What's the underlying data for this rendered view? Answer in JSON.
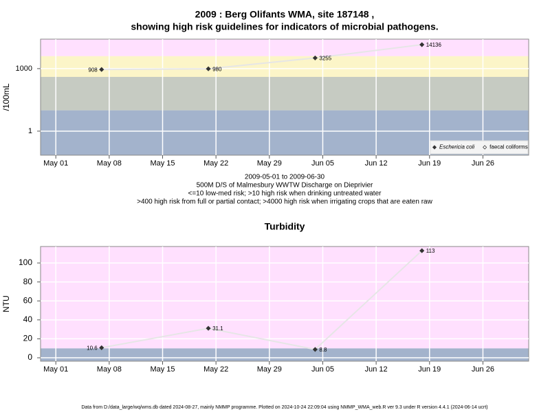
{
  "chart_data": [
    {
      "type": "line",
      "title": [
        "2009 : Berg Olifants WMA, site 187148 ,",
        "showing high risk guidelines for indicators of microbial pathogens."
      ],
      "y_label": "/100mL",
      "log_y": true,
      "x": [
        "May 07",
        "May 21",
        "Jun 04",
        "Jun 18"
      ],
      "series": [
        {
          "name": "Eschericia coli",
          "color": "#333333",
          "line_color": "#e6e6e6",
          "marker": "filled",
          "values": [
            908,
            980,
            3255,
            14136
          ]
        },
        {
          "name": "faecal coliforms",
          "color": "#333333",
          "line_color": "#e6e6e6",
          "marker": "open",
          "values": [
            null,
            null,
            null,
            null
          ]
        }
      ],
      "xlim": [
        "Apr 29",
        "Jul 02"
      ],
      "xticks": [
        "May 01",
        "May 08",
        "May 15",
        "May 22",
        "May 29",
        "Jun 05",
        "Jun 12",
        "Jun 19",
        "Jun 26"
      ],
      "ylim": [
        0.07,
        26000
      ],
      "yticks": [
        1,
        1000
      ],
      "band_breaks": [
        10,
        400,
        4000
      ],
      "band_colors": [
        "#a3b3cc",
        "#c6cbc2",
        "#fcf5c8",
        "#ffe0fe"
      ],
      "grid": true,
      "legend": "bottom-right",
      "subtitle": [
        "2009-05-01 to 2009-06-30",
        "500M D/S of Malmesbury WWTW Discharge on Dieprivier",
        "<=10 low-med risk; >10 high risk when drinking untreated water",
        ">400 high risk from full or partial contact; >4000 high risk when irrigating crops that are eaten raw"
      ]
    },
    {
      "type": "line",
      "title": [
        "Turbidity"
      ],
      "y_label": "NTU",
      "log_y": false,
      "x": [
        "May 07",
        "May 21",
        "Jun 04",
        "Jun 18"
      ],
      "series": [
        {
          "name": "Turbidity",
          "color": "#333333",
          "line_color": "#e6e6e6",
          "marker": "filled",
          "values": [
            10.6,
            31.1,
            8.8,
            113
          ]
        }
      ],
      "xlim": [
        "Apr 29",
        "Jul 02"
      ],
      "xticks": [
        "May 01",
        "May 08",
        "May 15",
        "May 22",
        "May 29",
        "Jun 05",
        "Jun 12",
        "Jun 19",
        "Jun 26"
      ],
      "ylim": [
        -3.6,
        117.4
      ],
      "yticks": [
        0,
        20,
        40,
        60,
        80,
        100
      ],
      "band_breaks": [
        10
      ],
      "band_colors": [
        "#a3b3cc",
        "#ffe0fe"
      ],
      "grid": true
    }
  ],
  "footer": "Data from D:/data_large/wq/wms.db dated 2024-08-27, mainly NMMP programme. Plotted on 2024-10-24 22:09:04 using NMMP_WMA_web.R ver 9.3 under R version 4.4.1 (2024-06-14 ucrt)"
}
